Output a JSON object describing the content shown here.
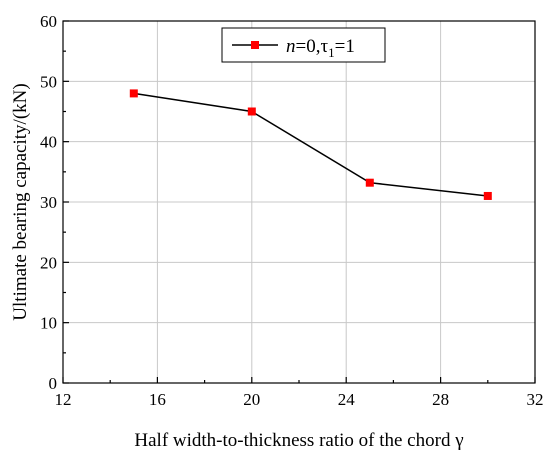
{
  "chart_data": {
    "type": "line",
    "x": [
      15,
      20,
      25,
      30
    ],
    "series": [
      {
        "name_parts": {
          "n": "n",
          "n_value": "=0,",
          "tau": "τ",
          "tau_sub": "1",
          "tau_value": "=1"
        },
        "values": [
          48.0,
          45.0,
          33.2,
          31.0
        ],
        "line_color": "#000000",
        "marker_color": "#ff0000",
        "marker": "square"
      }
    ],
    "xlabel": "Half width-to-thickness ratio of the chord γ",
    "ylabel": "Ultimate bearing capacity/(kN)",
    "xlim": [
      12,
      32
    ],
    "ylim": [
      0,
      60
    ],
    "x_ticks": [
      "12",
      "16",
      "20",
      "24",
      "28",
      "32"
    ],
    "y_ticks": [
      "0",
      "10",
      "20",
      "30",
      "40",
      "50",
      "60"
    ],
    "grid": true,
    "legend_position": "top-center"
  }
}
